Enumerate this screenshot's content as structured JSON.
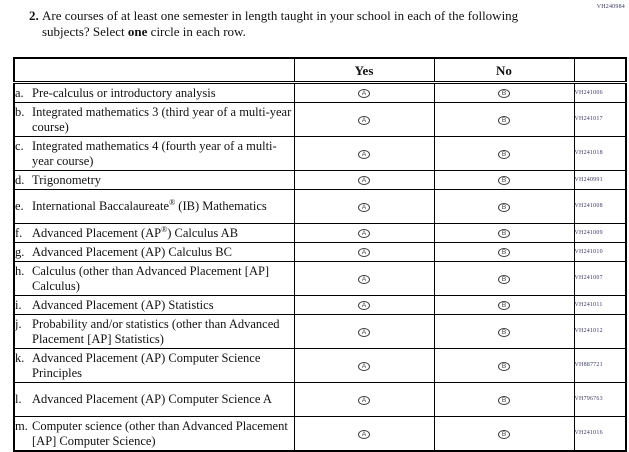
{
  "page": {
    "code": "VH240984"
  },
  "question": {
    "number": "2.",
    "text_part1": "Are courses of at least one semester in length taught in your school in each of the following subjects? Select ",
    "text_bold": "one",
    "text_part2": " circle in each row."
  },
  "table": {
    "col_yes": "Yes",
    "col_no": "No",
    "yes_letter": "A",
    "no_letter": "B",
    "rows": [
      {
        "letter": "a.",
        "label": "Pre-calculus or introductory analysis",
        "code": "VH241006",
        "lines": 1
      },
      {
        "letter": "b.",
        "label": "Integrated mathematics 3 (third year of a multi-year course)",
        "code": "VH241017",
        "lines": 2
      },
      {
        "letter": "c.",
        "label": "Integrated mathematics 4 (fourth year of a multi-year course)",
        "code": "VH241018",
        "lines": 2
      },
      {
        "letter": "d.",
        "label": "Trigonometry",
        "code": "VH240991",
        "lines": 1
      },
      {
        "letter": "e.",
        "label": "International Baccalaureate® (IB) Mathematics",
        "code": "VH241008",
        "lines": 2
      },
      {
        "letter": "f.",
        "label": "Advanced Placement (AP®) Calculus AB",
        "code": "VH241009",
        "lines": 1
      },
      {
        "letter": "g.",
        "label": "Advanced Placement (AP) Calculus BC",
        "code": "VH241010",
        "lines": 1
      },
      {
        "letter": "h.",
        "label": "Calculus (other than Advanced Placement [AP] Calculus)",
        "code": "VH241007",
        "lines": 2
      },
      {
        "letter": "i.",
        "label": "Advanced Placement (AP) Statistics",
        "code": "VH241011",
        "lines": 1
      },
      {
        "letter": "j.",
        "label": "Probability and/or statistics (other than Advanced Placement [AP] Statistics)",
        "code": "VH241012",
        "lines": 2
      },
      {
        "letter": "k.",
        "label": "Advanced Placement (AP) Computer Science Principles",
        "code": "VH887721",
        "lines": 2
      },
      {
        "letter": "l.",
        "label": "Advanced Placement (AP) Computer Science A",
        "code": "VH796763",
        "lines": 2
      },
      {
        "letter": "m.",
        "label": "Computer science (other than Advanced Placement [AP] Computer Science)",
        "code": "VH241016",
        "lines": 2
      }
    ]
  }
}
